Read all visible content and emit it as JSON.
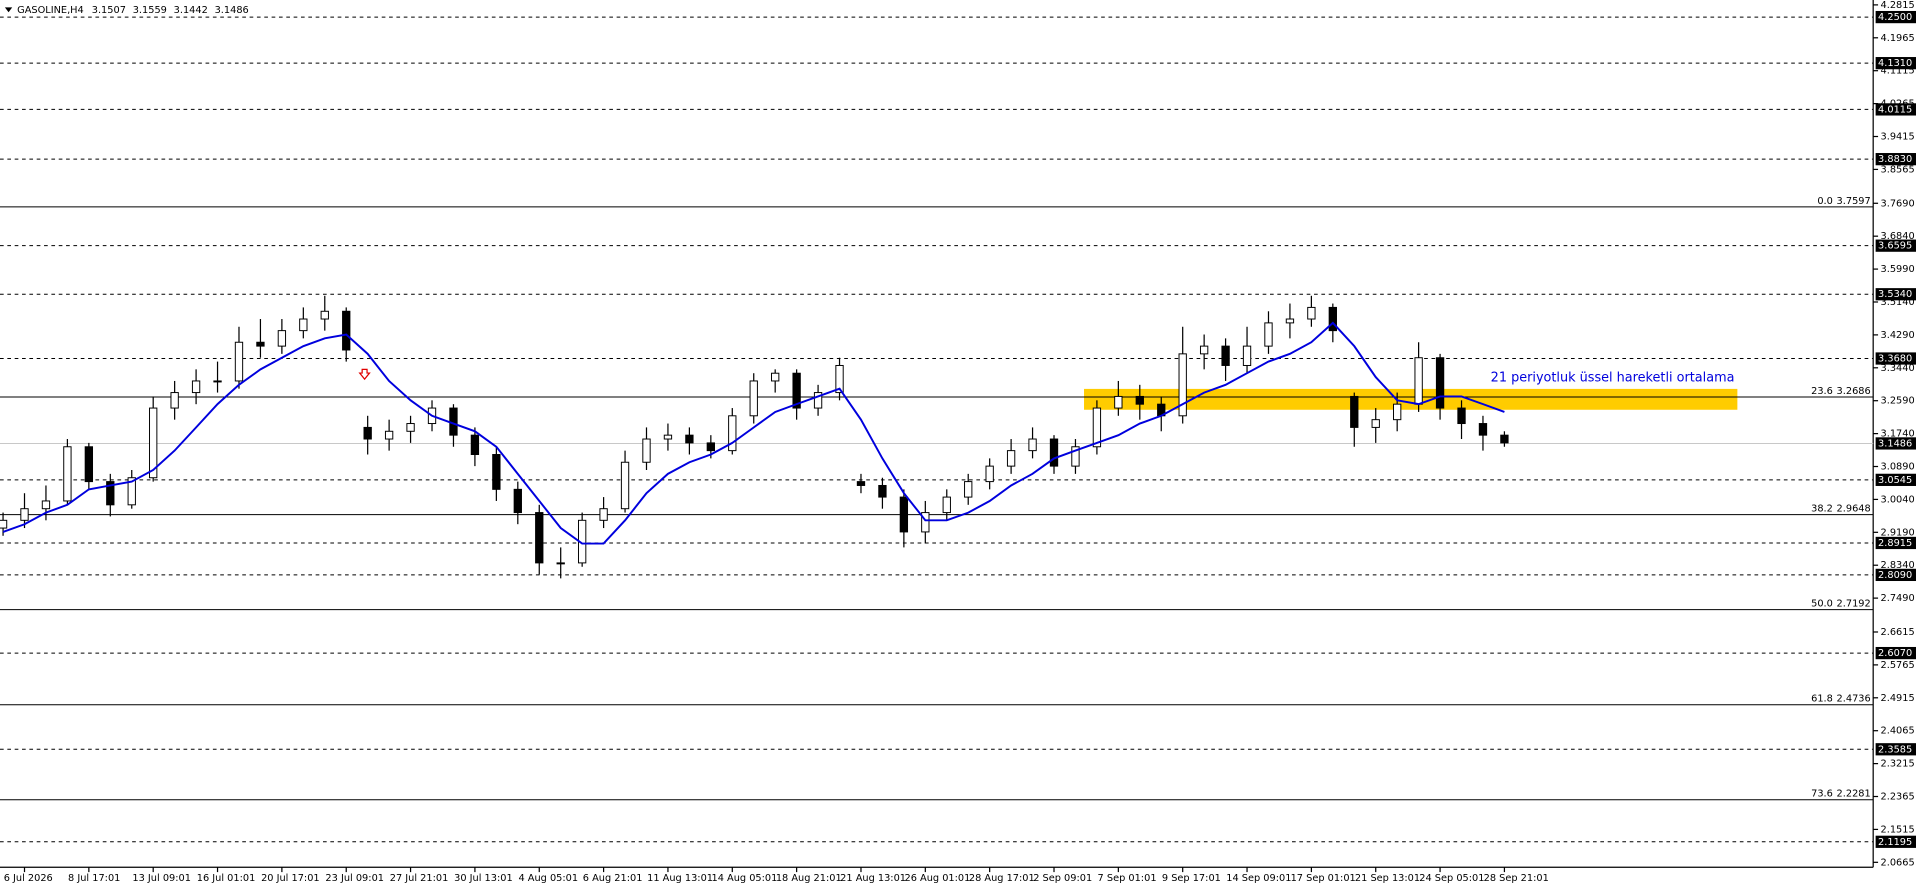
{
  "header": {
    "symbol": "GASOLINE,H4",
    "ohlc": [
      3.1507,
      3.1559,
      3.1442,
      3.1486
    ]
  },
  "chart_data": {
    "type": "candlestick",
    "categories": [
      null,
      "6 Jul 2026",
      null,
      null,
      "8 Jul 17:01",
      null,
      null,
      "13 Jul 09:01",
      null,
      null,
      "16 Jul 01:01",
      null,
      null,
      "20 Jul 17:01",
      null,
      null,
      "23 Jul 09:01",
      null,
      null,
      "27 Jul 21:01",
      null,
      null,
      "30 Jul 13:01",
      null,
      null,
      "4 Aug 05:01",
      null,
      null,
      "6 Aug 21:01",
      null,
      null,
      "11 Aug 13:01",
      null,
      null,
      "14 Aug 05:01",
      null,
      null,
      "18 Aug 21:01",
      null,
      null,
      "21 Aug 13:01",
      null,
      null,
      "26 Aug 01:01",
      null,
      null,
      "28 Aug 17:01",
      null,
      null,
      "2 Sep 09:01",
      null,
      null,
      "7 Sep 01:01",
      null,
      null,
      "9 Sep 17:01",
      null,
      null,
      "14 Sep 09:01",
      null,
      null,
      "17 Sep 01:01",
      null,
      null,
      "21 Sep 13:01",
      null,
      null,
      "24 Sep 05:01",
      null,
      null,
      "28 Sep 21:01"
    ],
    "open": [
      2.93,
      2.95,
      2.98,
      3.0,
      3.14,
      3.05,
      2.99,
      3.06,
      3.24,
      3.28,
      3.31,
      3.31,
      3.41,
      3.4,
      3.44,
      3.47,
      3.49,
      3.19,
      3.16,
      3.18,
      3.2,
      3.24,
      3.17,
      3.12,
      3.03,
      2.97,
      2.84,
      2.84,
      2.95,
      2.98,
      3.1,
      3.16,
      3.17,
      3.15,
      3.13,
      3.22,
      3.31,
      3.33,
      3.24,
      3.28,
      3.05,
      3.04,
      3.01,
      2.92,
      2.97,
      3.01,
      3.05,
      3.09,
      3.13,
      3.16,
      3.09,
      3.14,
      3.24,
      3.27,
      3.25,
      3.22,
      3.38,
      3.4,
      3.35,
      3.4,
      3.46,
      3.47,
      3.5,
      3.27,
      3.19,
      3.21,
      3.25,
      3.37,
      3.24,
      3.2,
      3.17
    ],
    "high": [
      2.97,
      3.02,
      3.04,
      3.16,
      3.15,
      3.07,
      3.08,
      3.27,
      3.31,
      3.34,
      3.36,
      3.45,
      3.47,
      3.47,
      3.5,
      3.53,
      3.5,
      3.22,
      3.21,
      3.22,
      3.26,
      3.25,
      3.19,
      3.14,
      3.05,
      2.99,
      2.88,
      2.97,
      3.01,
      3.13,
      3.19,
      3.2,
      3.19,
      3.17,
      3.24,
      3.33,
      3.34,
      3.34,
      3.3,
      3.37,
      3.07,
      3.06,
      3.03,
      3.0,
      3.03,
      3.07,
      3.11,
      3.16,
      3.19,
      3.17,
      3.16,
      3.26,
      3.31,
      3.3,
      3.27,
      3.45,
      3.43,
      3.42,
      3.45,
      3.49,
      3.51,
      3.53,
      3.51,
      3.28,
      3.24,
      3.28,
      3.41,
      3.38,
      3.26,
      3.22,
      3.18
    ],
    "low": [
      2.91,
      2.93,
      2.95,
      2.99,
      3.03,
      2.96,
      2.98,
      3.05,
      3.21,
      3.25,
      3.28,
      3.29,
      3.37,
      3.38,
      3.42,
      3.44,
      3.36,
      3.12,
      3.13,
      3.15,
      3.18,
      3.14,
      3.09,
      3.0,
      2.94,
      2.81,
      2.8,
      2.83,
      2.93,
      2.97,
      3.08,
      3.13,
      3.12,
      3.11,
      3.12,
      3.2,
      3.28,
      3.21,
      3.22,
      3.26,
      3.02,
      2.98,
      2.88,
      2.89,
      2.95,
      2.99,
      3.03,
      3.07,
      3.11,
      3.07,
      3.07,
      3.12,
      3.22,
      3.21,
      3.18,
      3.2,
      3.34,
      3.31,
      3.33,
      3.38,
      3.42,
      3.45,
      3.41,
      3.14,
      3.15,
      3.18,
      3.23,
      3.21,
      3.16,
      3.13,
      3.14
    ],
    "close": [
      2.95,
      2.98,
      3.0,
      3.14,
      3.05,
      2.99,
      3.06,
      3.24,
      3.28,
      3.31,
      3.31,
      3.41,
      3.4,
      3.44,
      3.47,
      3.49,
      3.39,
      3.16,
      3.18,
      3.2,
      3.24,
      3.17,
      3.12,
      3.03,
      2.97,
      2.84,
      2.84,
      2.95,
      2.98,
      3.1,
      3.16,
      3.17,
      3.15,
      3.13,
      3.22,
      3.31,
      3.33,
      3.24,
      3.28,
      3.35,
      3.04,
      3.01,
      2.92,
      2.97,
      3.01,
      3.05,
      3.09,
      3.13,
      3.16,
      3.09,
      3.14,
      3.24,
      3.27,
      3.25,
      3.22,
      3.38,
      3.4,
      3.35,
      3.4,
      3.46,
      3.47,
      3.5,
      3.44,
      3.19,
      3.21,
      3.25,
      3.37,
      3.24,
      3.2,
      3.17,
      3.15
    ],
    "ema": {
      "color": "#0000dd",
      "values": [
        2.92,
        2.94,
        2.97,
        2.99,
        3.03,
        3.04,
        3.05,
        3.08,
        3.13,
        3.19,
        3.25,
        3.3,
        3.34,
        3.37,
        3.4,
        3.42,
        3.43,
        3.38,
        3.31,
        3.26,
        3.22,
        3.2,
        3.18,
        3.14,
        3.07,
        3.0,
        2.93,
        2.89,
        2.89,
        2.95,
        3.02,
        3.07,
        3.1,
        3.12,
        3.15,
        3.19,
        3.23,
        3.25,
        3.27,
        3.29,
        3.21,
        3.11,
        3.02,
        2.95,
        2.95,
        2.97,
        3.0,
        3.04,
        3.07,
        3.11,
        3.13,
        3.15,
        3.17,
        3.2,
        3.22,
        3.25,
        3.28,
        3.3,
        3.33,
        3.36,
        3.38,
        3.41,
        3.46,
        3.4,
        3.32,
        3.26,
        3.25,
        3.27,
        3.27,
        3.25,
        3.23
      ]
    },
    "annotation": "21 periyotluk üssel hareketli ortalama",
    "ylim": [
      2.0665,
      4.2815
    ],
    "yticks": [
      4.2815,
      4.1965,
      4.1115,
      4.0265,
      3.9415,
      3.8565,
      {
        "value": 3.769,
        "label": "3.7690"
      },
      {
        "value": 3.684,
        "label": "3.6840"
      },
      {
        "value": 3.599,
        "label": "3.5990"
      },
      {
        "value": 3.514,
        "label": "3.5140"
      },
      {
        "value": 3.429,
        "label": "3.4290"
      },
      {
        "value": 3.344,
        "label": "3.3440"
      },
      {
        "value": 3.259,
        "label": "3.2590"
      },
      {
        "value": 3.174,
        "label": "3.1740"
      },
      {
        "value": 3.089,
        "label": "3.0890"
      },
      {
        "value": 3.004,
        "label": "3.0040"
      },
      {
        "value": 2.919,
        "label": "2.9190"
      },
      {
        "value": 2.834,
        "label": "2.8340"
      },
      {
        "value": 2.749,
        "label": "2.7490"
      },
      2.6615,
      2.5765,
      2.4915,
      2.4065,
      2.3215,
      2.2365,
      2.1515,
      2.0665
    ],
    "levels": [
      {
        "value": 4.25,
        "label": "4.2500"
      },
      {
        "value": 4.131,
        "label": "4.1310"
      },
      4.0115,
      {
        "value": 3.883,
        "label": "3.8830"
      },
      3.6595,
      {
        "value": 3.534,
        "label": "3.5340"
      },
      {
        "value": 3.368,
        "label": "3.3680"
      },
      3.0545,
      2.8915,
      {
        "value": 2.809,
        "label": "2.8090"
      },
      {
        "value": 2.607,
        "label": "2.6070"
      },
      2.3585,
      2.1195
    ],
    "fibonacci": [
      {
        "level": "0.0",
        "price": 3.7597
      },
      {
        "level": "23.6",
        "price": 3.2686
      },
      {
        "level": "38.2",
        "price": 2.9648
      },
      {
        "level": "50.0",
        "price": 2.7192
      },
      {
        "level": "61.8",
        "price": 2.4736
      },
      {
        "level": "73.6",
        "price": 2.2281
      }
    ],
    "current_price": 3.1486,
    "zone": {
      "top": 3.2895,
      "bottom": 3.2356,
      "color": "#ffcc00"
    },
    "up_color": "#ffffff",
    "down_color": "#000000"
  }
}
